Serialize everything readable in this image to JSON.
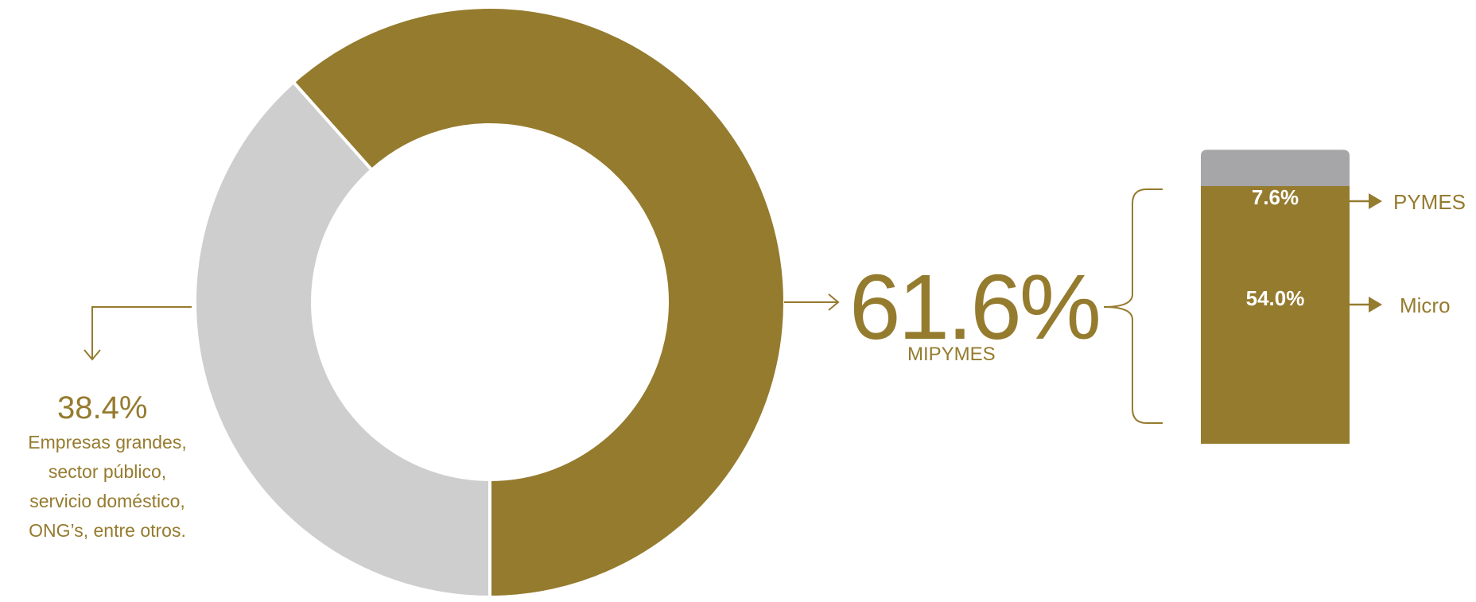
{
  "colors": {
    "accent": "#957b2e",
    "light_gray": "#cfcecf",
    "mid_gray": "#a6a5a7",
    "white": "#ffffff"
  },
  "chart_data": [
    {
      "type": "pie",
      "variant": "donut",
      "slices": [
        {
          "name": "MIPYMES",
          "value": 61.6,
          "color": "#957b2e"
        },
        {
          "name": "Empresas grandes, sector público, servicio doméstico, ONG’s, entre otros.",
          "value": 38.4,
          "color": "#cfcecf"
        }
      ]
    },
    {
      "type": "bar",
      "variant": "stacked",
      "categories": [
        "MIPYMES"
      ],
      "series": [
        {
          "name": "Micro",
          "values": [
            54.0
          ],
          "color": "#957b2e"
        },
        {
          "name": "PYMES",
          "values": [
            7.6
          ],
          "color": "#a6a5a7"
        }
      ]
    }
  ],
  "labels": {
    "main_pct": "61.6%",
    "main_label": "MIPYMES",
    "other_pct": "38.4%",
    "other_desc_lines": [
      "Empresas grandes,",
      "sector público,",
      "servicio doméstico,",
      "ONG’s, entre otros."
    ],
    "bar_top_value": "7.6%",
    "bar_bottom_value": "54.0%",
    "pymes_label": "PYMES",
    "micro_label": "Micro"
  }
}
